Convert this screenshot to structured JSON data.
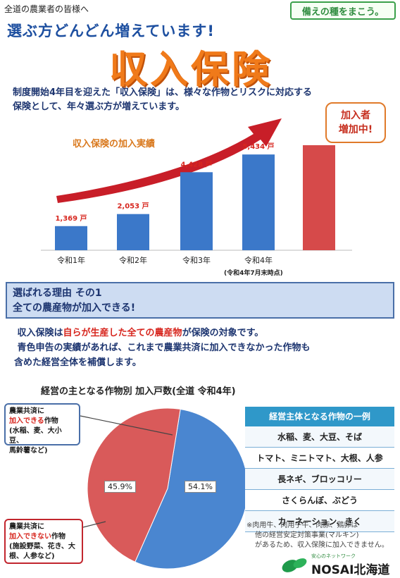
{
  "header": {
    "to_farmers": "全道の農業者の皆様へ",
    "catchphrase": "備えの種をまこう。",
    "headline": "選ぶ方どんどん増えています!",
    "big_title": "収入保険",
    "lead_line1": "制度開始4年目を迎えた「収入保険」は、様々な作物とリスクに対応する",
    "lead_line2": "保険として、年々選ぶ方が増えています。"
  },
  "chart": {
    "title": "収入保険の加入実績",
    "callout_line1": "加入者",
    "callout_line2": "増加中!",
    "footnote": "(令和4年7月末時点)"
  },
  "chart_data": {
    "type": "bar",
    "categories": [
      "令和1年",
      "令和2年",
      "令和3年",
      "令和4年"
    ],
    "values": [
      1369,
      2053,
      4428,
      5434
    ],
    "value_labels": [
      "1,369",
      "2,053",
      "4,428",
      "5,434"
    ],
    "unit": "戸",
    "colors": {
      "bar": "#3b78c9",
      "highlight": "#d64a4a",
      "label": "#d7261e"
    }
  },
  "reason": {
    "line1": "選ばれる理由 その1",
    "line2": "全ての農産物が加入できる!"
  },
  "body": {
    "p1_pre": "収入保険は",
    "p1_red": "自らが生産した全ての農産物",
    "p1_post": "が保険の対象です。",
    "p2_line1": "青色申告の実績があれば、これまで農業共済に加入できなかった作物も",
    "p2_line2": "含めた経営全体を補償します。"
  },
  "pie": {
    "title": "経営の主となる作物別 加入戸数(全道 令和4年)",
    "can_label": "54.1%",
    "cannot_label": "45.9%",
    "box_can": {
      "line1": "農業共済に",
      "red": "加入できる",
      "line2_rest": "作物",
      "line3": "(水稲、麦、大小豆、",
      "line4": "馬鈴薯など)"
    },
    "box_cannot": {
      "line1": "農業共済に",
      "red": "加入できない",
      "line2_rest": "作物",
      "line3": "(施設野菜、花き、大",
      "line4": "根、人参など)"
    }
  },
  "pie_data": {
    "type": "pie",
    "slices": [
      {
        "name": "農業共済に加入できる作物",
        "value": 54.1,
        "color": "#4a86d0"
      },
      {
        "name": "農業共済に加入できない作物",
        "value": 45.9,
        "color": "#d95a5a"
      }
    ]
  },
  "examples": {
    "header": "経営主体となる作物の一例",
    "rows": [
      "水稲、麦、大豆、そば",
      "トマト、ミニトマト、大根、人参",
      "長ネギ、ブロッコリー",
      "さくらんぼ、ぶどう",
      "カーネーション、きく"
    ]
  },
  "note": {
    "line1": "※肉用牛、肉用子牛、肉豚、鶏卵は",
    "line2": "他の経営安定対策事業(マルキン)",
    "line3": "があるため、収入保険に加入できません。"
  },
  "footer": {
    "logo_small": "安心のネットワーク",
    "logo_brand": "NOSAI北海道"
  }
}
